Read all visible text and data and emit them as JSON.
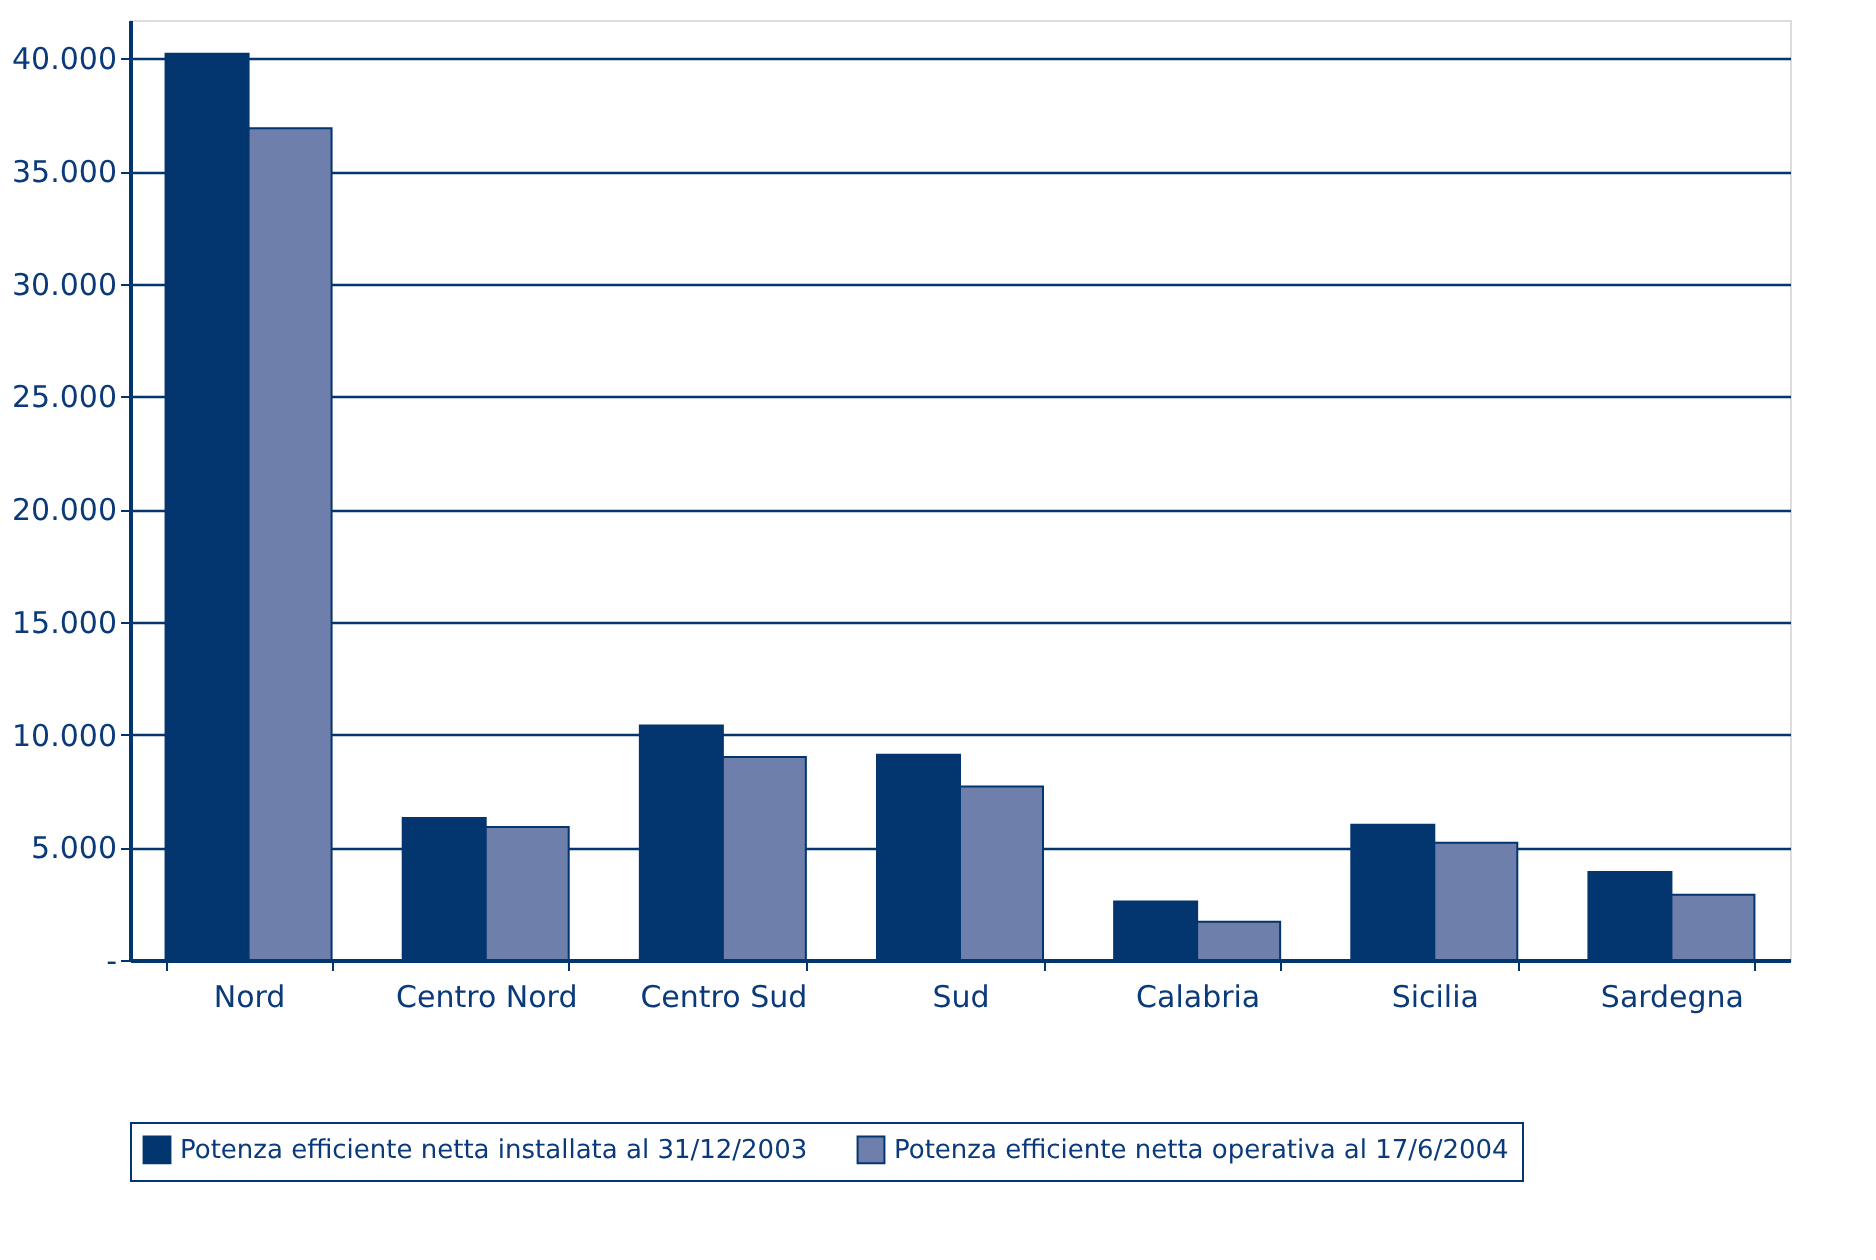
{
  "chart_data": {
    "type": "bar",
    "categories": [
      "Nord",
      "Centro Nord",
      "Centro Sud",
      "Sud",
      "Calabria",
      "Sicilia",
      "Sardegna"
    ],
    "series": [
      {
        "name": "Potenza efficiente netta installata al 31/12/2003",
        "color": "#03356f",
        "values": [
          40200,
          6300,
          10400,
          9100,
          2600,
          6000,
          3900
        ]
      },
      {
        "name": "Potenza efficiente netta operativa al 17/6/2004",
        "color": "#6f7fab",
        "values": [
          36900,
          5900,
          9000,
          7700,
          1700,
          5200,
          2900
        ]
      }
    ],
    "ylim": [
      0,
      41700
    ],
    "yticks": [
      {
        "value": 0,
        "label": "-"
      },
      {
        "value": 5000,
        "label": "5.000"
      },
      {
        "value": 10000,
        "label": "10.000"
      },
      {
        "value": 15000,
        "label": "15.000"
      },
      {
        "value": 20000,
        "label": "20.000"
      },
      {
        "value": 25000,
        "label": "25.000"
      },
      {
        "value": 30000,
        "label": "30.000"
      },
      {
        "value": 35000,
        "label": "35.000"
      },
      {
        "value": 40000,
        "label": "40.000"
      }
    ],
    "grid": "y",
    "legend": "bottom"
  }
}
